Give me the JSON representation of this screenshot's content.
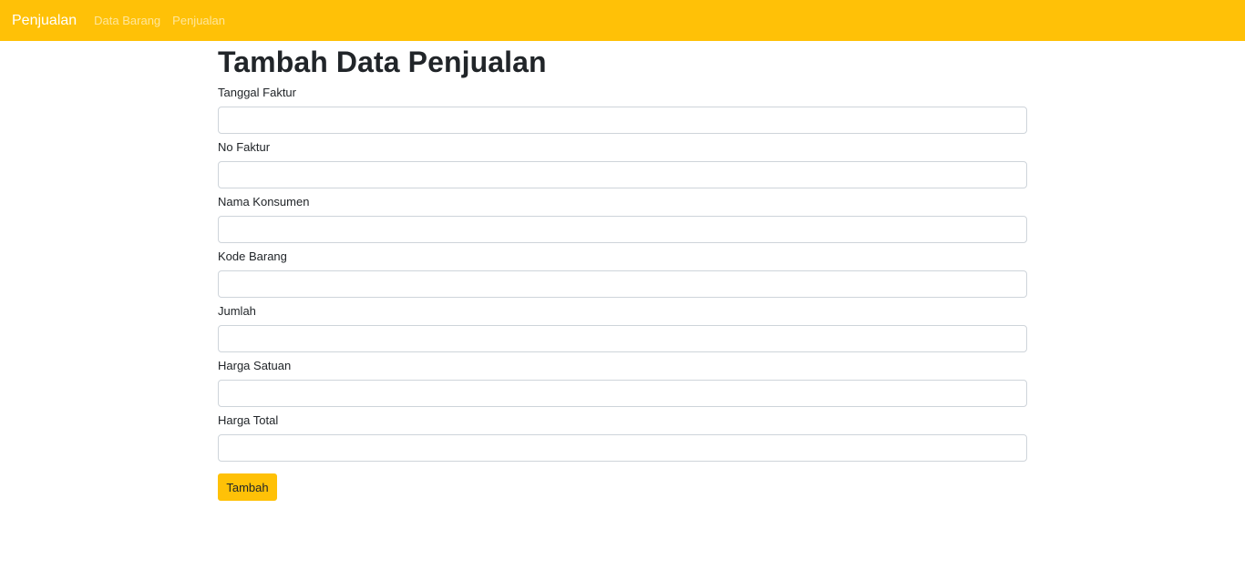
{
  "navbar": {
    "brand": "Penjualan",
    "links": [
      {
        "label": "Data Barang"
      },
      {
        "label": "Penjualan"
      }
    ],
    "colors": {
      "background": "#ffc107",
      "brand_text": "#ffffff"
    }
  },
  "main": {
    "title": "Tambah Data Penjualan",
    "fields": [
      {
        "label": "Tanggal Faktur",
        "value": "",
        "placeholder": ""
      },
      {
        "label": "No Faktur",
        "value": "",
        "placeholder": ""
      },
      {
        "label": "Nama Konsumen",
        "value": "",
        "placeholder": ""
      },
      {
        "label": "Kode Barang",
        "value": "",
        "placeholder": ""
      },
      {
        "label": "Jumlah",
        "value": "",
        "placeholder": ""
      },
      {
        "label": "Harga Satuan",
        "value": "",
        "placeholder": ""
      },
      {
        "label": "Harga Total",
        "value": "",
        "placeholder": ""
      }
    ],
    "submit_label": "Tambah",
    "colors": {
      "button": "#ffc107"
    }
  }
}
